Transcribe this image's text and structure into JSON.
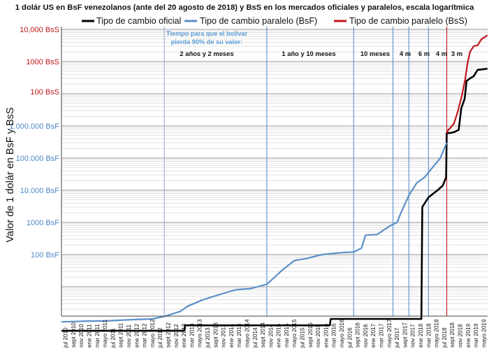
{
  "chart_data": {
    "type": "line",
    "title": "1 dolár US en BsF venezolanos (ante del 20 agosto de 2018) y BsS en los mercados oficiales y paralelos, escala logarítmica",
    "ylabel": "Valor de 1 dolár en BsF y BsS",
    "yscale": "log",
    "ylim": [
      1,
      12000000000
    ],
    "grid": true,
    "legend_position": "top",
    "legend": [
      {
        "label": "Tipo de cambio oficial",
        "color": "#000000"
      },
      {
        "label": "Tipo de cambio paralelo (BsF)",
        "color": "#5b8fc9"
      },
      {
        "label": "Tipo de cambio paralelo (BsS)",
        "color": "#c0171b"
      }
    ],
    "y_ticks_bss": [
      {
        "label": "10,000 BsS",
        "value": 10000000000
      },
      {
        "label": "1000 BsS",
        "value": 1000000000
      },
      {
        "label": "100 BsS",
        "value": 100000000
      }
    ],
    "y_ticks_bsf": [
      {
        "label": "1.000.000 BsF",
        "value": 1000000
      },
      {
        "label": "100.000 BsF",
        "value": 100000
      },
      {
        "label": "10.000 BsF",
        "value": 10000
      },
      {
        "label": "1000 BsF",
        "value": 1000
      },
      {
        "label": "100 BsF",
        "value": 100
      }
    ],
    "x_tick_labels": [
      "jul 2010",
      "sept 2010",
      "nov 2010",
      "ene 2011",
      "mar 2011",
      "mayo 2011",
      "jul 2011",
      "sept 2011",
      "nov 2011",
      "ene 2012",
      "mar 2012",
      "mayo 2012",
      "jul 2012",
      "sept 2012",
      "nov 2012",
      "ene 2013",
      "mar 2013",
      "mayo 2013",
      "jul 2013",
      "sept 2013",
      "nov 2013",
      "ene 2014",
      "mar 2014",
      "mayo 2014",
      "jul 2014",
      "sept 2014",
      "nov 2014",
      "ene 2015",
      "mar 2015",
      "mayo 2015",
      "jul 2015",
      "sept 2015",
      "nov 2015",
      "ene 2016",
      "mar 2016",
      "mayo 2016",
      "jul 2016",
      "sept 2016",
      "nov 2016",
      "ene 2017",
      "mar 2017",
      "mayo 2017",
      "jul 2017",
      "sept 2017",
      "nov 2017",
      "ene 2018",
      "mar 2018",
      "mayo 2018",
      "jul 2018",
      "sept 2018",
      "nov 2018",
      "ene 2019",
      "mar 2019",
      "mayo 2019"
    ],
    "series": [
      {
        "name": "Tipo de cambio oficial",
        "color": "#000000",
        "x": [
          "2010-07-01",
          "2013-02-01",
          "2013-02-08",
          "2016-03-01",
          "2016-03-08",
          "2018-02-05",
          "2018-02-12",
          "2018-04-01",
          "2018-05-10",
          "2018-06-10",
          "2018-07-20",
          "2018-08-15",
          "2018-08-20",
          "2018-09-15",
          "2018-10-20",
          "2018-11-20",
          "2018-12-10",
          "2019-01-05",
          "2019-01-20",
          "2019-02-15",
          "2019-03-15",
          "2019-04-15",
          "2019-06-30"
        ],
        "y": [
          4.3,
          4.3,
          6.3,
          6.3,
          10,
          10,
          30000,
          60000,
          80000,
          100000,
          140000,
          250000,
          6000000,
          6000000,
          6500000,
          7500000,
          35000000,
          70000000,
          250000000,
          300000000,
          350000000,
          550000000,
          600000000
        ]
      },
      {
        "name": "Tipo de cambio paralelo (BsF)",
        "color": "#5b8fc9",
        "x": [
          "2010-07-01",
          "2011-01-01",
          "2011-07-01",
          "2012-01-01",
          "2012-06-01",
          "2012-09-01",
          "2013-01-01",
          "2013-03-01",
          "2013-07-01",
          "2013-12-01",
          "2014-03-01",
          "2014-07-01",
          "2014-11-01",
          "2015-01-01",
          "2015-03-01",
          "2015-06-01",
          "2015-09-01",
          "2016-01-01",
          "2016-06-01",
          "2016-09-01",
          "2016-11-01",
          "2016-12-01",
          "2017-03-01",
          "2017-06-01",
          "2017-08-01",
          "2017-09-01",
          "2017-11-01",
          "2018-01-01",
          "2018-03-01",
          "2018-05-01",
          "2018-07-01",
          "2018-08-19"
        ],
        "y": [
          8.1,
          8.5,
          8.8,
          9.5,
          10,
          12,
          17,
          25,
          40,
          62,
          80,
          88,
          120,
          200,
          330,
          650,
          750,
          1000,
          1150,
          1200,
          1600,
          4000,
          4200,
          7500,
          10000,
          20000,
          70000,
          170000,
          250000,
          500000,
          1000000,
          3000000
        ]
      },
      {
        "name": "Tipo de cambio paralelo (BsS)",
        "color": "#c0171b",
        "x": [
          "2018-08-20",
          "2018-09-01",
          "2018-09-15",
          "2018-10-15",
          "2018-11-15",
          "2018-12-15",
          "2019-01-10",
          "2019-01-25",
          "2019-02-15",
          "2019-03-15",
          "2019-04-15",
          "2019-05-15",
          "2019-06-30"
        ],
        "y": [
          6000000,
          7500000,
          8500000,
          12000000,
          30000000,
          90000000,
          300000000,
          800000000,
          2000000000,
          3000000000,
          3200000000,
          5000000000,
          6500000000
        ]
      }
    ],
    "period_annotations": {
      "heading": [
        "Tiempo para que el bolívar",
        "pierda 90% de su valor:"
      ],
      "labels": [
        "2 años y 2 meses",
        "1 año y 10 meses",
        "10 meses",
        "4 m",
        "6 m",
        "4 m",
        "3 m"
      ],
      "boundaries": [
        "2012-09-01",
        "2014-11-01",
        "2016-09-01",
        "2017-07-01",
        "2017-11-01",
        "2018-04-01",
        "2018-08-20"
      ],
      "boundary_colors": [
        "#a0a8cc",
        "#5b8fc9",
        "#5b8fc9",
        "#5b8fc9",
        "#5b8fc9",
        "#5b8fc9",
        "#c0171b"
      ]
    }
  }
}
